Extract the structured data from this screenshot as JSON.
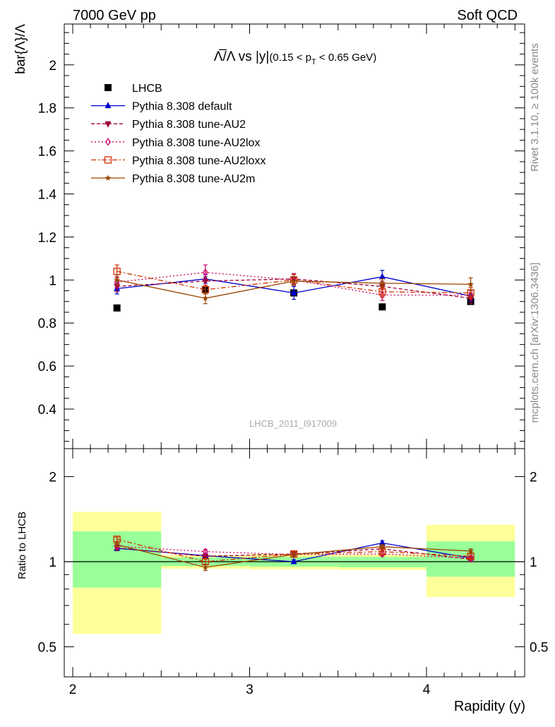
{
  "header": {
    "left": "7000 GeV pp",
    "right": "Soft QCD"
  },
  "side_labels": {
    "rivet": "Rivet 3.1.10, ≥ 100k events",
    "mcplots": "mcplots.cern.ch [arXiv:1306.3436]"
  },
  "watermark": "LHCB_2011_I917009",
  "chart_data": [
    {
      "type": "scatter",
      "panel": "main",
      "title_math": "Λ̅/Λ vs |y|",
      "title_range": "(0.15 < p",
      "title_range_sub": "T",
      "title_range_end": " < 0.65 GeV)",
      "ylabel": "bar{Λ}/Λ",
      "ylim": [
        0.25,
        2.2
      ],
      "yticks": [
        "0.4",
        "0.6",
        "0.8",
        "1",
        "1.2",
        "1.4",
        "1.6",
        "1.8",
        "2"
      ],
      "xlim": [
        1.95,
        4.55
      ],
      "x": [
        2.25,
        2.75,
        3.25,
        3.75,
        4.25
      ],
      "legend": "top-left",
      "series": [
        {
          "name": "LHCB",
          "color": "#000000",
          "marker": "square",
          "line": "none",
          "values": [
            0.87,
            0.955,
            0.94,
            0.875,
            0.9
          ]
        },
        {
          "name": "Pythia 8.308 default",
          "color": "#0000cc",
          "marker": "triangle-up",
          "line": "solid",
          "values": [
            0.96,
            1.005,
            0.94,
            1.015,
            0.925
          ],
          "errors": [
            0.025,
            0.02,
            0.03,
            0.03,
            0.025
          ]
        },
        {
          "name": "Pythia 8.308 tune-AU2",
          "color": "#990033",
          "marker": "triangle-down",
          "line": "dashed",
          "values": [
            0.97,
            0.995,
            1.005,
            0.97,
            0.915
          ],
          "errors": [
            0.025,
            0.02,
            0.025,
            0.025,
            0.025
          ]
        },
        {
          "name": "Pythia 8.308 tune-AU2lox",
          "color": "#cc0066",
          "marker": "diamond-open",
          "line": "dotted",
          "values": [
            0.99,
            1.035,
            1.0,
            0.93,
            0.93
          ],
          "errors": [
            0.025,
            0.035,
            0.025,
            0.025,
            0.02
          ]
        },
        {
          "name": "Pythia 8.308 tune-AU2loxx",
          "color": "#cc3300",
          "marker": "square-open",
          "line": "dashdot",
          "values": [
            1.04,
            0.955,
            1.0,
            0.945,
            0.94
          ],
          "errors": [
            0.03,
            0.02,
            0.025,
            0.025,
            0.025
          ]
        },
        {
          "name": "Pythia 8.308 tune-AU2m",
          "color": "#994400",
          "marker": "star",
          "line": "solid",
          "values": [
            1.0,
            0.915,
            0.995,
            0.985,
            0.98
          ],
          "errors": [
            0.025,
            0.025,
            0.02,
            0.02,
            0.03
          ]
        }
      ]
    },
    {
      "type": "scatter",
      "panel": "ratio",
      "ylabel": "Ratio to LHCB",
      "xlabel": "Rapidity (y)",
      "ylim": [
        0.4,
        2.4
      ],
      "yscale": "log",
      "yticks": [
        "0.5",
        "1",
        "2"
      ],
      "xlim": [
        1.95,
        4.55
      ],
      "xticks": [
        "2",
        "3",
        "4"
      ],
      "bands": [
        {
          "x": [
            2.0,
            2.5
          ],
          "yellow": [
            0.555,
            1.5
          ],
          "green": [
            0.81,
            1.28
          ]
        },
        {
          "x": [
            2.5,
            3.0
          ],
          "yellow": [
            0.945,
            1.055
          ],
          "green": [
            0.965,
            1.035
          ]
        },
        {
          "x": [
            3.0,
            3.5
          ],
          "yellow": [
            0.94,
            1.065
          ],
          "green": [
            0.96,
            1.04
          ]
        },
        {
          "x": [
            3.5,
            4.0
          ],
          "yellow": [
            0.935,
            1.06
          ],
          "green": [
            0.955,
            1.04
          ]
        },
        {
          "x": [
            4.0,
            4.5
          ],
          "yellow": [
            0.75,
            1.35
          ],
          "green": [
            0.885,
            1.18
          ]
        }
      ],
      "x": [
        2.25,
        2.75,
        3.25,
        3.75,
        4.25
      ],
      "series": [
        {
          "name": "Pythia 8.308 default",
          "color": "#0000cc",
          "marker": "triangle-up",
          "line": "solid",
          "values": [
            1.115,
            1.05,
            1.0,
            1.165,
            1.03
          ],
          "errors": [
            0.02,
            0.02,
            0.015,
            0.02,
            0.02
          ]
        },
        {
          "name": "Pythia 8.308 tune-AU2",
          "color": "#990033",
          "marker": "triangle-down",
          "line": "dashed",
          "values": [
            1.12,
            1.045,
            1.065,
            1.11,
            1.02
          ],
          "errors": [
            0.02,
            0.02,
            0.02,
            0.02,
            0.02
          ]
        },
        {
          "name": "Pythia 8.308 tune-AU2lox",
          "color": "#cc0066",
          "marker": "diamond-open",
          "line": "dotted",
          "values": [
            1.135,
            1.085,
            1.06,
            1.065,
            1.03
          ],
          "errors": [
            0.02,
            0.02,
            0.02,
            0.02,
            0.02
          ]
        },
        {
          "name": "Pythia 8.308 tune-AU2loxx",
          "color": "#cc3300",
          "marker": "square-open",
          "line": "dashdot",
          "values": [
            1.2,
            1.0,
            1.065,
            1.085,
            1.045
          ],
          "errors": [
            0.02,
            0.02,
            0.02,
            0.02,
            0.02
          ]
        },
        {
          "name": "Pythia 8.308 tune-AU2m",
          "color": "#994400",
          "marker": "star",
          "line": "solid",
          "values": [
            1.15,
            0.955,
            1.06,
            1.13,
            1.09
          ],
          "errors": [
            0.02,
            0.025,
            0.02,
            0.02,
            0.02
          ]
        }
      ]
    }
  ]
}
